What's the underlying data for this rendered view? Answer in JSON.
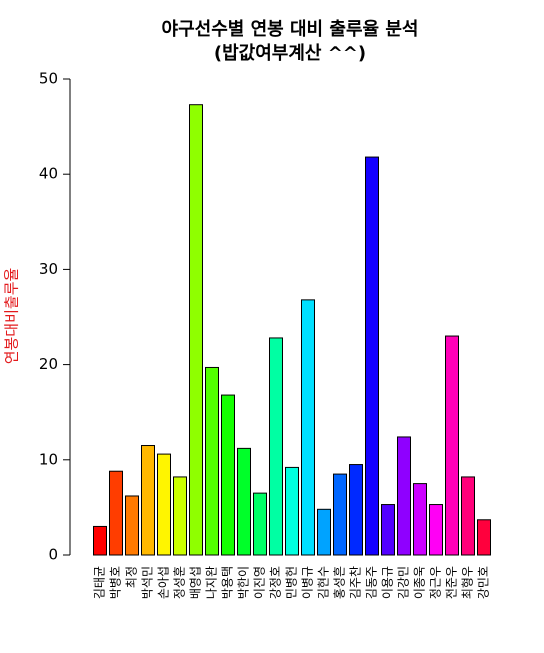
{
  "chart_data": {
    "type": "bar",
    "title": "야구선수별 연봉 대비 출루율 분석",
    "subtitle": "(밥값여부계산 ^^)",
    "y_label": "연봉대비출루율",
    "categories": [
      "김태균",
      "박병호",
      "최정",
      "박석민",
      "손아섭",
      "정성훈",
      "배영섭",
      "나지완",
      "박용택",
      "박한이",
      "이진영",
      "강정호",
      "민병헌",
      "이병규",
      "김현수",
      "홍성흔",
      "김주찬",
      "김동주",
      "이용규",
      "김강민",
      "이종욱",
      "정근우",
      "전준우",
      "최형우",
      "강민호"
    ],
    "values": [
      3.0,
      8.8,
      6.2,
      11.5,
      10.6,
      8.2,
      47.3,
      19.7,
      16.8,
      11.2,
      6.5,
      22.8,
      9.2,
      26.8,
      4.8,
      8.5,
      9.5,
      41.8,
      5.3,
      12.4,
      7.5,
      5.3,
      23.0,
      8.2,
      3.7
    ],
    "colors": [
      "#FF0000",
      "#FF3D00",
      "#FF7A00",
      "#FFB800",
      "#FFF500",
      "#CCFF00",
      "#8FFF00",
      "#52FF00",
      "#14FF00",
      "#00FF29",
      "#00FF66",
      "#00FFA3",
      "#00FFE0",
      "#00E0FF",
      "#00A3FF",
      "#0066FF",
      "#0029FF",
      "#1400FF",
      "#5200FF",
      "#8F00FF",
      "#CC00FF",
      "#FF00F5",
      "#FF00B8",
      "#FF007A",
      "#FF003D"
    ],
    "ylim": [
      0,
      50
    ],
    "yticks": [
      0,
      10,
      20,
      30,
      40,
      50
    ],
    "grid": false
  }
}
